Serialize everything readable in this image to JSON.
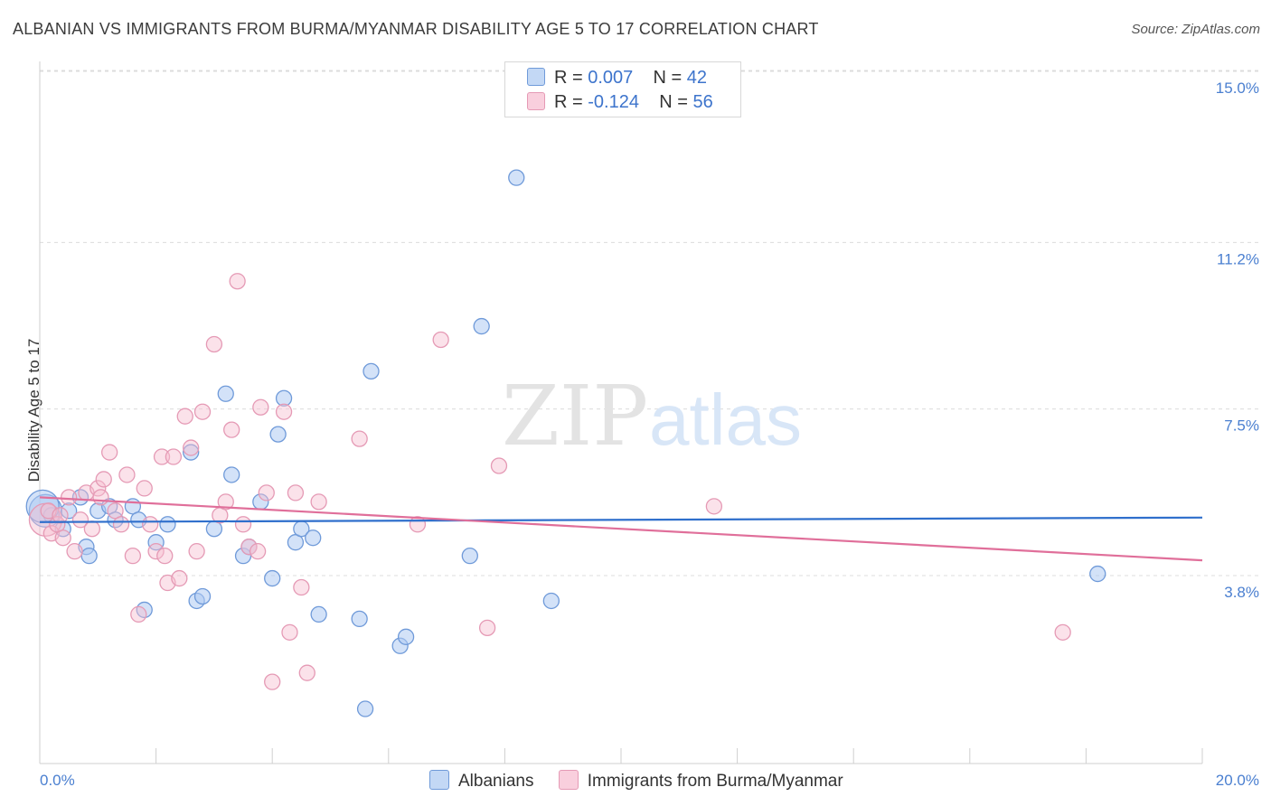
{
  "title": "ALBANIAN VS IMMIGRANTS FROM BURMA/MYANMAR DISABILITY AGE 5 TO 17 CORRELATION CHART",
  "source": "Source: ZipAtlas.com",
  "watermark": {
    "zip": "ZIP",
    "atlas": "atlas"
  },
  "legend": {
    "r_label": "R =",
    "n_label": "N =",
    "series1": {
      "r": "0.007",
      "n": "42"
    },
    "series2": {
      "r": "-0.124",
      "n": "56"
    }
  },
  "colors": {
    "blue": "#4a7fd0",
    "blue_fill": "#aecbf2",
    "pink": "#e07aa0",
    "pink_fill": "#f6bfd1",
    "blue_line": "#2f6fcc",
    "pink_line": "#e06f9a"
  },
  "chart_data": {
    "type": "scatter",
    "title": "ALBANIAN VS IMMIGRANTS FROM BURMA/MYANMAR DISABILITY AGE 5 TO 17 CORRELATION CHART",
    "xlabel": "",
    "ylabel": "Disability Age 5 to 17",
    "xlim": [
      0,
      20
    ],
    "ylim": [
      0,
      15.5
    ],
    "x_tick_labels": [
      "0.0%",
      "20.0%"
    ],
    "y_ticks": [
      3.8,
      7.5,
      11.2,
      15.0
    ],
    "y_tick_labels": [
      "3.8%",
      "7.5%",
      "11.2%",
      "15.0%"
    ],
    "grid": true,
    "legend_position": "top-center",
    "series": [
      {
        "name": "Albanians",
        "color": "#4a7fd0",
        "r": 0.007,
        "n": 42,
        "trend": {
          "x": [
            0,
            20
          ],
          "y": [
            5.35,
            5.45
          ]
        },
        "points": [
          [
            0.1,
            5.6
          ],
          [
            0.2,
            5.5
          ],
          [
            0.4,
            5.2
          ],
          [
            0.5,
            5.6
          ],
          [
            0.7,
            5.9
          ],
          [
            0.8,
            4.8
          ],
          [
            0.85,
            4.6
          ],
          [
            1.0,
            5.6
          ],
          [
            1.2,
            5.7
          ],
          [
            1.3,
            5.4
          ],
          [
            1.6,
            5.7
          ],
          [
            1.7,
            5.4
          ],
          [
            1.8,
            3.4
          ],
          [
            2.2,
            5.3
          ],
          [
            2.0,
            4.9
          ],
          [
            2.6,
            6.9
          ],
          [
            2.7,
            3.6
          ],
          [
            2.8,
            3.7
          ],
          [
            3.0,
            5.2
          ],
          [
            3.2,
            8.2
          ],
          [
            3.3,
            6.4
          ],
          [
            3.5,
            4.6
          ],
          [
            3.6,
            4.8
          ],
          [
            3.8,
            5.8
          ],
          [
            4.0,
            4.1
          ],
          [
            4.1,
            7.3
          ],
          [
            4.2,
            8.1
          ],
          [
            4.4,
            4.9
          ],
          [
            4.5,
            5.2
          ],
          [
            4.7,
            5.0
          ],
          [
            4.8,
            3.3
          ],
          [
            5.5,
            3.2
          ],
          [
            5.6,
            1.2
          ],
          [
            5.7,
            8.7
          ],
          [
            6.2,
            2.6
          ],
          [
            6.3,
            2.8
          ],
          [
            7.4,
            4.6
          ],
          [
            7.6,
            9.7
          ],
          [
            8.2,
            13.0
          ],
          [
            8.8,
            3.6
          ],
          [
            18.2,
            4.2
          ],
          [
            0.05,
            5.7
          ]
        ]
      },
      {
        "name": "Immigrants from Burma/Myanmar",
        "color": "#e07aa0",
        "r": -0.124,
        "n": 56,
        "trend": {
          "x": [
            0,
            20
          ],
          "y": [
            5.9,
            4.5
          ]
        },
        "points": [
          [
            0.1,
            5.4
          ],
          [
            0.2,
            5.1
          ],
          [
            0.3,
            5.3
          ],
          [
            0.4,
            5.0
          ],
          [
            0.5,
            5.9
          ],
          [
            0.6,
            4.7
          ],
          [
            0.7,
            5.4
          ],
          [
            0.8,
            6.0
          ],
          [
            0.9,
            5.2
          ],
          [
            1.0,
            6.1
          ],
          [
            1.1,
            6.3
          ],
          [
            1.2,
            6.9
          ],
          [
            1.3,
            5.6
          ],
          [
            1.4,
            5.3
          ],
          [
            1.5,
            6.4
          ],
          [
            1.6,
            4.6
          ],
          [
            1.7,
            3.3
          ],
          [
            1.8,
            6.1
          ],
          [
            1.9,
            5.3
          ],
          [
            2.0,
            4.7
          ],
          [
            2.1,
            6.8
          ],
          [
            2.2,
            4.0
          ],
          [
            2.3,
            6.8
          ],
          [
            2.4,
            4.1
          ],
          [
            2.5,
            7.7
          ],
          [
            2.6,
            7.0
          ],
          [
            2.7,
            4.7
          ],
          [
            2.8,
            7.8
          ],
          [
            3.0,
            9.3
          ],
          [
            3.1,
            5.5
          ],
          [
            3.2,
            5.8
          ],
          [
            3.3,
            7.4
          ],
          [
            3.4,
            10.7
          ],
          [
            3.5,
            5.3
          ],
          [
            3.6,
            4.8
          ],
          [
            3.8,
            7.9
          ],
          [
            3.9,
            6.0
          ],
          [
            4.0,
            1.8
          ],
          [
            4.2,
            7.8
          ],
          [
            4.3,
            2.9
          ],
          [
            4.4,
            6.0
          ],
          [
            4.5,
            3.9
          ],
          [
            4.6,
            2.0
          ],
          [
            4.8,
            5.8
          ],
          [
            5.5,
            7.2
          ],
          [
            6.5,
            5.3
          ],
          [
            6.9,
            9.4
          ],
          [
            7.7,
            3.0
          ],
          [
            7.9,
            6.6
          ],
          [
            11.6,
            5.7
          ],
          [
            17.6,
            2.9
          ],
          [
            0.15,
            5.6
          ],
          [
            0.35,
            5.5
          ],
          [
            1.05,
            5.9
          ],
          [
            2.15,
            4.6
          ],
          [
            3.75,
            4.7
          ]
        ]
      }
    ]
  },
  "bottom_legend": [
    "Albanians",
    "Immigrants from Burma/Myanmar"
  ]
}
